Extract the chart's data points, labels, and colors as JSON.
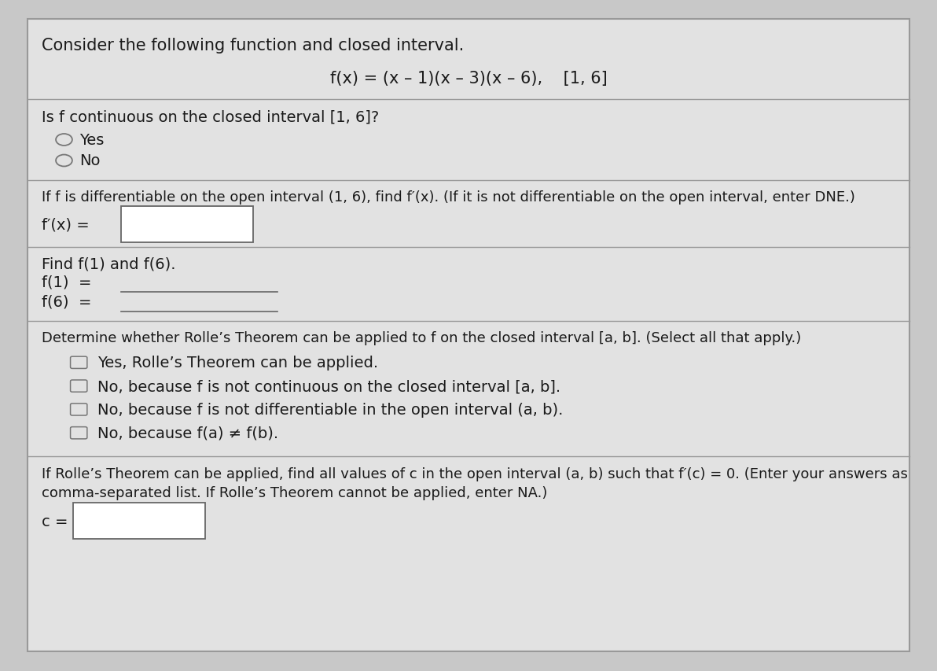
{
  "bg_color": "#c8c8c8",
  "content_bg": "#e2e2e2",
  "border_color": "#999999",
  "text_color": "#1a1a1a",
  "title": "Consider the following function and closed interval.",
  "function_line": "f(x) = (x – 1)(x – 3)(x – 6),    [1, 6]",
  "q1": "Is f continuous on the closed interval [1, 6]?",
  "q1_yes": "Yes",
  "q1_no": "No",
  "q2": "If f is differentiable on the open interval (1, 6), find f′(x). (If it is not differentiable on the open interval, enter DNE.)",
  "fprime_label": "f′(x) =",
  "q3": "Find f(1) and f(6).",
  "f1_label": "f(1)  =",
  "f6_label": "f(6)  =",
  "q4": "Determine whether Rolle’s Theorem can be applied to f on the closed interval [a, b]. (Select all that apply.)",
  "roles_opt1": "Yes, Rolle’s Theorem can be applied.",
  "roles_opt2": "No, because f is not continuous on the closed interval [a, b].",
  "roles_opt3": "No, because f is not differentiable in the open interval (a, b).",
  "roles_opt4": "No, because f(a) ≠ f(b).",
  "q5a": "If Rolle’s Theorem can be applied, find all values of c in the open interval (a, b) such that f′(c) = 0. (Enter your answers as",
  "q5b": "comma-separated list. If Rolle’s Theorem cannot be applied, enter NA.)",
  "c_label": "c =",
  "fs_title": 15,
  "fs_main": 14,
  "fs_func": 15,
  "fs_small": 13
}
